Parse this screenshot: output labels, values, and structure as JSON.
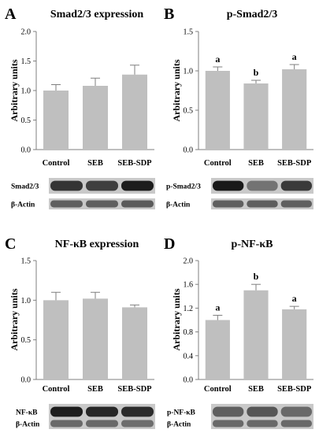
{
  "colors": {
    "bar": "#bfbfbf",
    "axis": "#7f7f7f",
    "band_bg": "#c9c9c9"
  },
  "chart_data": [
    {
      "type": "bar",
      "letter": "A",
      "title": "Smad2/3 expression",
      "ylabel": "Arbitrary units",
      "categories": [
        "Control",
        "SEB",
        "SEB-SDP"
      ],
      "values": [
        1.0,
        1.08,
        1.27
      ],
      "errors": [
        0.1,
        0.13,
        0.16
      ],
      "ylim": [
        0,
        2.0
      ],
      "yticks": [
        "0.0",
        "0.5",
        "1.0",
        "1.5",
        "2.0"
      ],
      "letters": [
        "",
        "",
        ""
      ],
      "blots": [
        {
          "label": "Smad2/3",
          "intensity": [
            0.78,
            0.72,
            0.9
          ]
        },
        {
          "label": "β-Actin",
          "intensity": [
            0.55,
            0.55,
            0.58
          ]
        }
      ]
    },
    {
      "type": "bar",
      "letter": "B",
      "title": "p-Smad2/3",
      "ylabel": "Arbitrary units",
      "categories": [
        "Control",
        "SEB",
        "SEB-SDP"
      ],
      "values": [
        1.0,
        0.84,
        1.02
      ],
      "errors": [
        0.05,
        0.04,
        0.06
      ],
      "ylim": [
        0,
        1.5
      ],
      "yticks": [
        "0.0",
        "0.5",
        "1.0",
        "1.5"
      ],
      "letters": [
        "a",
        "b",
        "a"
      ],
      "blots": [
        {
          "label": "p-Smad2/3",
          "intensity": [
            0.92,
            0.45,
            0.75
          ]
        },
        {
          "label": "β-Actin",
          "intensity": [
            0.55,
            0.56,
            0.55
          ]
        }
      ]
    },
    {
      "type": "bar",
      "letter": "C",
      "title": "NF-κB expression",
      "ylabel": "Arbitrary units",
      "categories": [
        "Control",
        "SEB",
        "SEB-SDP"
      ],
      "values": [
        1.0,
        1.02,
        0.91
      ],
      "errors": [
        0.1,
        0.08,
        0.03
      ],
      "ylim": [
        0,
        1.5
      ],
      "yticks": [
        "0.0",
        "0.5",
        "1.0",
        "1.5"
      ],
      "letters": [
        "",
        "",
        ""
      ],
      "blots": [
        {
          "label": "NF-κB",
          "intensity": [
            0.9,
            0.85,
            0.82
          ]
        },
        {
          "label": "β-Actin",
          "intensity": [
            0.5,
            0.5,
            0.48
          ]
        }
      ]
    },
    {
      "type": "bar",
      "letter": "D",
      "title": "p-NF-κB",
      "ylabel": "Arbitrary units",
      "categories": [
        "Control",
        "SEB",
        "SEB-SDP"
      ],
      "values": [
        1.0,
        1.5,
        1.18
      ],
      "errors": [
        0.08,
        0.1,
        0.05
      ],
      "ylim": [
        0,
        2.0
      ],
      "yticks": [
        "0.0",
        "0.4",
        "0.8",
        "1.2",
        "1.6",
        "2.0"
      ],
      "letters": [
        "a",
        "b",
        "a"
      ],
      "blots": [
        {
          "label": "p-NF-κB",
          "intensity": [
            0.55,
            0.6,
            0.5
          ]
        },
        {
          "label": "β-Actin",
          "intensity": [
            0.5,
            0.5,
            0.5
          ]
        }
      ]
    }
  ]
}
